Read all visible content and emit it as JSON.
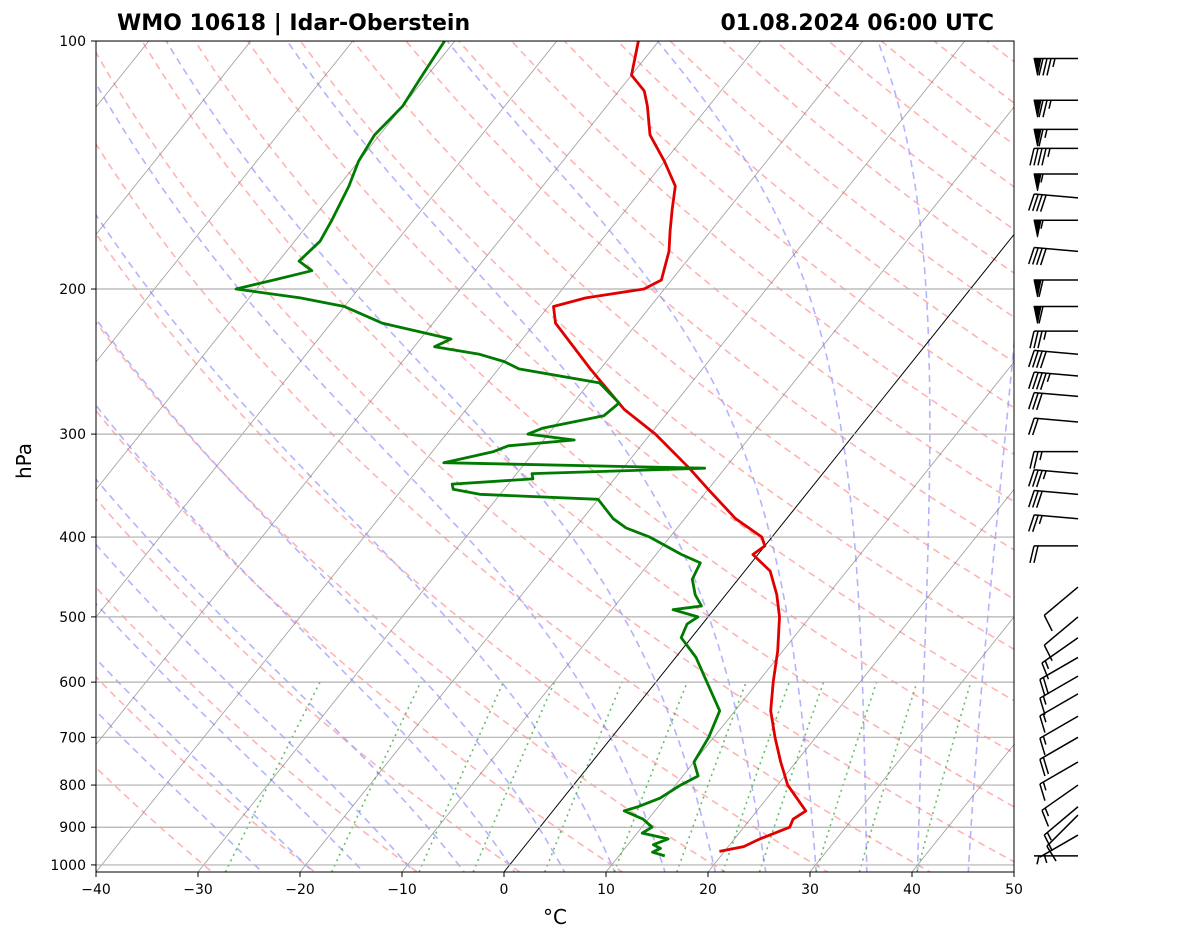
{
  "chart_data": {
    "type": "line",
    "diagram": "skew-t log-p",
    "title_left": "WMO 10618 | Idar-Oberstein",
    "title_right": "01.08.2024 06:00 UTC",
    "xlabel": "°C",
    "ylabel": "hPa",
    "xlim": [
      -40,
      50
    ],
    "ylim": [
      1020,
      100
    ],
    "y_scale": "log",
    "x_ticks": [
      "−40",
      "−30",
      "−20",
      "−10",
      "0",
      "10",
      "20",
      "30",
      "40",
      "50"
    ],
    "y_ticks": [
      "100",
      "200",
      "300",
      "400",
      "500",
      "600",
      "700",
      "800",
      "900",
      "1000"
    ],
    "grid": true,
    "series": [
      {
        "color": "#e00000",
        "points": [
          [
            963,
            19.5
          ],
          [
            950,
            21.5
          ],
          [
            930,
            22.5
          ],
          [
            900,
            24.5
          ],
          [
            880,
            24.2
          ],
          [
            860,
            24.8
          ],
          [
            800,
            21.0
          ],
          [
            750,
            18.5
          ],
          [
            700,
            16.0
          ],
          [
            650,
            13.5
          ],
          [
            600,
            11.5
          ],
          [
            550,
            9.5
          ],
          [
            500,
            7.0
          ],
          [
            470,
            5.0
          ],
          [
            440,
            2.5
          ],
          [
            420,
            -0.5
          ],
          [
            410,
            0.0
          ],
          [
            400,
            -1.0
          ],
          [
            380,
            -5.0
          ],
          [
            350,
            -10.0
          ],
          [
            330,
            -13.5
          ],
          [
            300,
            -19.5
          ],
          [
            280,
            -24.5
          ],
          [
            250,
            -31.0
          ],
          [
            220,
            -38.0
          ],
          [
            210,
            -39.5
          ],
          [
            205,
            -37.0
          ],
          [
            200,
            -32.0
          ],
          [
            195,
            -31.0
          ],
          [
            180,
            -32.5
          ],
          [
            170,
            -34.0
          ],
          [
            160,
            -35.5
          ],
          [
            150,
            -37.0
          ],
          [
            140,
            -40.0
          ],
          [
            130,
            -43.5
          ],
          [
            120,
            -46.0
          ],
          [
            115,
            -47.5
          ],
          [
            110,
            -50.0
          ],
          [
            100,
            -52.0
          ]
        ]
      },
      {
        "color": "#007a00",
        "points": [
          [
            975,
            14.5
          ],
          [
            965,
            13.0
          ],
          [
            955,
            13.5
          ],
          [
            945,
            12.5
          ],
          [
            930,
            13.5
          ],
          [
            915,
            10.5
          ],
          [
            900,
            11.0
          ],
          [
            880,
            9.5
          ],
          [
            860,
            7.0
          ],
          [
            850,
            8.0
          ],
          [
            830,
            9.5
          ],
          [
            800,
            10.5
          ],
          [
            780,
            11.5
          ],
          [
            750,
            10.0
          ],
          [
            700,
            9.5
          ],
          [
            650,
            8.5
          ],
          [
            600,
            5.0
          ],
          [
            560,
            2.0
          ],
          [
            530,
            -1.0
          ],
          [
            510,
            -1.5
          ],
          [
            500,
            -1.0
          ],
          [
            490,
            -4.0
          ],
          [
            485,
            -1.5
          ],
          [
            470,
            -3.0
          ],
          [
            450,
            -4.5
          ],
          [
            430,
            -5.0
          ],
          [
            420,
            -7.5
          ],
          [
            400,
            -12.0
          ],
          [
            390,
            -15.0
          ],
          [
            380,
            -17.0
          ],
          [
            360,
            -20.0
          ],
          [
            355,
            -32.0
          ],
          [
            350,
            -35.0
          ],
          [
            345,
            -35.5
          ],
          [
            340,
            -28.0
          ],
          [
            335,
            -28.5
          ],
          [
            330,
            -12.0
          ],
          [
            325,
            -38.0
          ],
          [
            320,
            -36.0
          ],
          [
            315,
            -34.0
          ],
          [
            310,
            -33.0
          ],
          [
            305,
            -27.0
          ],
          [
            300,
            -32.0
          ],
          [
            295,
            -31.0
          ],
          [
            285,
            -26.0
          ],
          [
            275,
            -25.5
          ],
          [
            260,
            -29.0
          ],
          [
            250,
            -38.0
          ],
          [
            245,
            -40.0
          ],
          [
            240,
            -43.0
          ],
          [
            235,
            -48.0
          ],
          [
            230,
            -47.0
          ],
          [
            220,
            -55.0
          ],
          [
            210,
            -60.0
          ],
          [
            205,
            -65.0
          ],
          [
            200,
            -72.0
          ],
          [
            195,
            -69.0
          ],
          [
            190,
            -66.0
          ],
          [
            185,
            -68.0
          ],
          [
            175,
            -67.5
          ],
          [
            165,
            -68.0
          ],
          [
            150,
            -69.0
          ],
          [
            140,
            -70.0
          ],
          [
            130,
            -70.5
          ],
          [
            120,
            -70.0
          ],
          [
            110,
            -70.5
          ],
          [
            100,
            -71.0
          ]
        ]
      }
    ],
    "background_lines": [
      {
        "kind": "isotherm",
        "color": "#808080",
        "style": "solid"
      },
      {
        "kind": "dry adiabat",
        "color": "#ff9999",
        "style": "dashed"
      },
      {
        "kind": "moist adiabat",
        "color": "#9999ff",
        "style": "dashed"
      },
      {
        "kind": "mixing ratio",
        "color": "#33aa33",
        "style": "dotted"
      }
    ],
    "wind_barbs": [
      {
        "p": 105,
        "dir": 270,
        "spd": 85
      },
      {
        "p": 118,
        "dir": 270,
        "spd": 75
      },
      {
        "p": 128,
        "dir": 270,
        "spd": 65
      },
      {
        "p": 135,
        "dir": 270,
        "spd": 45
      },
      {
        "p": 145,
        "dir": 270,
        "spd": 55
      },
      {
        "p": 155,
        "dir": 275,
        "spd": 40
      },
      {
        "p": 165,
        "dir": 270,
        "spd": 55
      },
      {
        "p": 180,
        "dir": 275,
        "spd": 40
      },
      {
        "p": 195,
        "dir": 270,
        "spd": 60
      },
      {
        "p": 210,
        "dir": 270,
        "spd": 60
      },
      {
        "p": 225,
        "dir": 270,
        "spd": 35
      },
      {
        "p": 240,
        "dir": 275,
        "spd": 40
      },
      {
        "p": 255,
        "dir": 275,
        "spd": 45
      },
      {
        "p": 270,
        "dir": 275,
        "spd": 30
      },
      {
        "p": 290,
        "dir": 275,
        "spd": 20
      },
      {
        "p": 315,
        "dir": 270,
        "spd": 25
      },
      {
        "p": 335,
        "dir": 275,
        "spd": 35
      },
      {
        "p": 355,
        "dir": 275,
        "spd": 30
      },
      {
        "p": 380,
        "dir": 275,
        "spd": 25
      },
      {
        "p": 410,
        "dir": 270,
        "spd": 20
      },
      {
        "p": 460,
        "dir": 230,
        "spd": 10
      },
      {
        "p": 500,
        "dir": 230,
        "spd": 10
      },
      {
        "p": 530,
        "dir": 235,
        "spd": 15
      },
      {
        "p": 560,
        "dir": 240,
        "spd": 20
      },
      {
        "p": 590,
        "dir": 240,
        "spd": 15
      },
      {
        "p": 620,
        "dir": 240,
        "spd": 15
      },
      {
        "p": 660,
        "dir": 240,
        "spd": 15
      },
      {
        "p": 700,
        "dir": 240,
        "spd": 20
      },
      {
        "p": 750,
        "dir": 240,
        "spd": 15
      },
      {
        "p": 800,
        "dir": 235,
        "spd": 15
      },
      {
        "p": 850,
        "dir": 230,
        "spd": 15
      },
      {
        "p": 870,
        "dir": 225,
        "spd": 10
      },
      {
        "p": 920,
        "dir": 240,
        "spd": 5
      },
      {
        "p": 975,
        "dir": 270,
        "spd": 5
      }
    ]
  }
}
